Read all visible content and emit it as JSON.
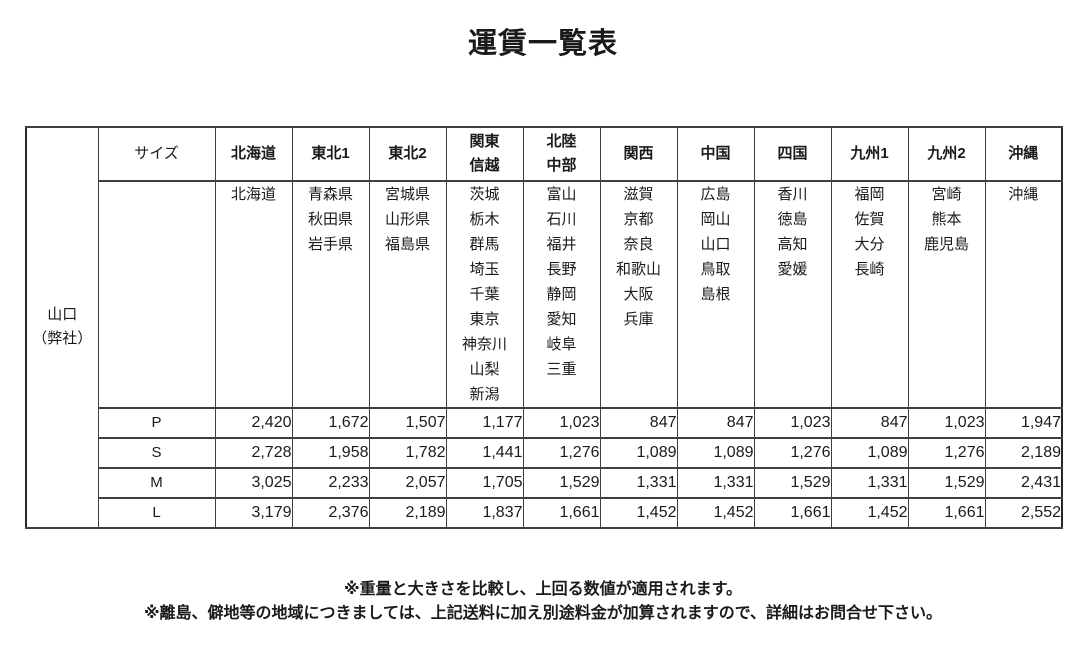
{
  "title": "運賃一覧表",
  "colors": {
    "origin_cell_bg": "#cdee4a",
    "highlight_cell_bg": "#ffffcc",
    "inner_border": "#3f3f3f",
    "outer_border": "#262626"
  },
  "table": {
    "origin_label_lines": [
      "山口",
      "（弊社）"
    ],
    "size_header_label": "サイズ",
    "columns": [
      {
        "label_lines": [
          "北海道"
        ],
        "prefectures": [
          "北海道"
        ],
        "highlighted": true
      },
      {
        "label_lines": [
          "東北1"
        ],
        "prefectures": [
          "青森県",
          "秋田県",
          "岩手県"
        ],
        "highlighted": false
      },
      {
        "label_lines": [
          "東北2"
        ],
        "prefectures": [
          "宮城県",
          "山形県",
          "福島県"
        ],
        "highlighted": true
      },
      {
        "label_lines": [
          "関東",
          "信越"
        ],
        "prefectures": [
          "茨城",
          "栃木",
          "群馬",
          "埼玉",
          "千葉",
          "東京",
          "神奈川",
          "山梨",
          "新潟"
        ],
        "highlighted": false
      },
      {
        "label_lines": [
          "北陸",
          "中部"
        ],
        "prefectures": [
          "富山",
          "石川",
          "福井",
          "長野",
          "静岡",
          "愛知",
          "岐阜",
          "三重"
        ],
        "highlighted": true
      },
      {
        "label_lines": [
          "関西"
        ],
        "prefectures": [
          "滋賀",
          "京都",
          "奈良",
          "和歌山",
          "大阪",
          "兵庫"
        ],
        "highlighted": false
      },
      {
        "label_lines": [
          "中国"
        ],
        "prefectures": [
          "広島",
          "岡山",
          "山口",
          "鳥取",
          "島根"
        ],
        "highlighted": true
      },
      {
        "label_lines": [
          "四国"
        ],
        "prefectures": [
          "香川",
          "徳島",
          "高知",
          "愛媛"
        ],
        "highlighted": false
      },
      {
        "label_lines": [
          "九州1"
        ],
        "prefectures": [
          "福岡",
          "佐賀",
          "大分",
          "長崎"
        ],
        "highlighted": true
      },
      {
        "label_lines": [
          "九州2"
        ],
        "prefectures": [
          "宮崎",
          "熊本",
          "鹿児島"
        ],
        "highlighted": false
      },
      {
        "label_lines": [
          "沖縄"
        ],
        "prefectures": [
          "沖縄"
        ],
        "highlighted": true
      }
    ],
    "size_rows": [
      {
        "size": "P",
        "values": [
          "2,420",
          "1,672",
          "1,507",
          "1,177",
          "1,023",
          "847",
          "847",
          "1,023",
          "847",
          "1,023",
          "1,947"
        ]
      },
      {
        "size": "S",
        "values": [
          "2,728",
          "1,958",
          "1,782",
          "1,441",
          "1,276",
          "1,089",
          "1,089",
          "1,276",
          "1,089",
          "1,276",
          "2,189"
        ]
      },
      {
        "size": "M",
        "values": [
          "3,025",
          "2,233",
          "2,057",
          "1,705",
          "1,529",
          "1,331",
          "1,331",
          "1,529",
          "1,331",
          "1,529",
          "2,431"
        ]
      },
      {
        "size": "L",
        "values": [
          "3,179",
          "2,376",
          "2,189",
          "1,837",
          "1,661",
          "1,452",
          "1,452",
          "1,661",
          "1,452",
          "1,661",
          "2,552"
        ]
      }
    ]
  },
  "notes": [
    "※重量と大きさを比較し、上回る数値が適用されます。",
    "※離島、僻地等の地域につきましては、上記送料に加え別途料金が加算されますので、詳細はお問合せ下さい。"
  ]
}
